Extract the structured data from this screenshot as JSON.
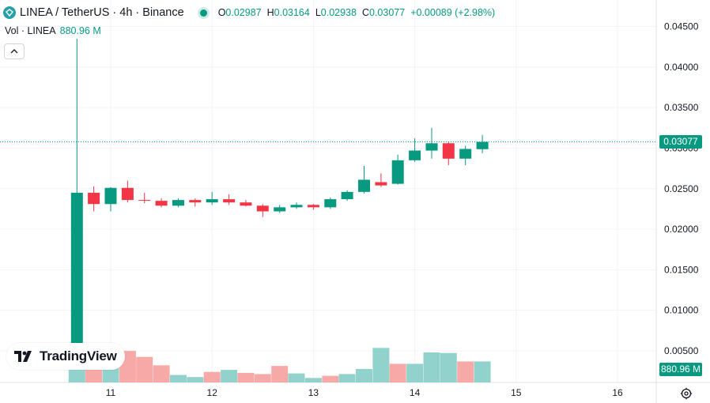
{
  "header": {
    "title": "LINEA / TetherUS · 4h · Binance",
    "ohlc": {
      "o_label": "O",
      "o": "0.02987",
      "h_label": "H",
      "h": "0.03164",
      "l_label": "L",
      "l": "0.02938",
      "c_label": "C",
      "c": "0.03077",
      "change": "+0.00089 (+2.98%)"
    }
  },
  "volume_legend": {
    "label": "Vol · LINEA",
    "value": "880.96 M"
  },
  "price_tag": "0.03077",
  "volume_tag": "880.96 M",
  "logo_text": "TradingView",
  "icons": {
    "symbol": "linea-symbol-icon",
    "status": "market-status-dot",
    "collapse": "chevron-up-icon",
    "logo": "tradingview-logo-icon",
    "settings": "gear-icon"
  },
  "colors": {
    "up": "#089981",
    "down": "#f23645",
    "up_volume": "#92d2cc",
    "down_volume": "#f7a9a7",
    "grid": "#f0f3fa"
  },
  "chart_data": {
    "type": "candlestick",
    "y_axis_labels": [
      "0.04500",
      "0.04000",
      "0.03500",
      "0.03000",
      "0.02500",
      "0.02000",
      "0.01500",
      "0.01000",
      "0.00500"
    ],
    "x_axis_labels": [
      "11",
      "12",
      "13",
      "14",
      "15",
      "16"
    ],
    "ylim": [
      0.0,
      0.047
    ],
    "last_price": 0.03077,
    "candles": [
      {
        "t": 10.667,
        "o": 0.0035,
        "h": 0.0435,
        "l": 0.0035,
        "c": 0.0245
      },
      {
        "t": 10.833,
        "o": 0.0245,
        "h": 0.0253,
        "l": 0.0222,
        "c": 0.0231
      },
      {
        "t": 11.0,
        "o": 0.0231,
        "h": 0.0252,
        "l": 0.0222,
        "c": 0.0251
      },
      {
        "t": 11.167,
        "o": 0.0251,
        "h": 0.026,
        "l": 0.0233,
        "c": 0.0236
      },
      {
        "t": 11.333,
        "o": 0.0236,
        "h": 0.0245,
        "l": 0.0232,
        "c": 0.0235
      },
      {
        "t": 11.5,
        "o": 0.0235,
        "h": 0.0238,
        "l": 0.0227,
        "c": 0.0229
      },
      {
        "t": 11.667,
        "o": 0.0229,
        "h": 0.0238,
        "l": 0.0227,
        "c": 0.0236
      },
      {
        "t": 11.833,
        "o": 0.0236,
        "h": 0.0238,
        "l": 0.0228,
        "c": 0.0233
      },
      {
        "t": 12.0,
        "o": 0.0233,
        "h": 0.0246,
        "l": 0.023,
        "c": 0.0237
      },
      {
        "t": 12.167,
        "o": 0.0237,
        "h": 0.0243,
        "l": 0.023,
        "c": 0.0233
      },
      {
        "t": 12.333,
        "o": 0.0233,
        "h": 0.0236,
        "l": 0.0228,
        "c": 0.0229
      },
      {
        "t": 12.5,
        "o": 0.0229,
        "h": 0.0231,
        "l": 0.0215,
        "c": 0.0222
      },
      {
        "t": 12.667,
        "o": 0.0222,
        "h": 0.023,
        "l": 0.022,
        "c": 0.0227
      },
      {
        "t": 12.833,
        "o": 0.0227,
        "h": 0.0233,
        "l": 0.0225,
        "c": 0.023
      },
      {
        "t": 13.0,
        "o": 0.023,
        "h": 0.0231,
        "l": 0.0224,
        "c": 0.0227
      },
      {
        "t": 13.167,
        "o": 0.0227,
        "h": 0.0239,
        "l": 0.0225,
        "c": 0.0237
      },
      {
        "t": 13.333,
        "o": 0.0237,
        "h": 0.0248,
        "l": 0.0235,
        "c": 0.0246
      },
      {
        "t": 13.5,
        "o": 0.0246,
        "h": 0.0278,
        "l": 0.0244,
        "c": 0.0261
      },
      {
        "t": 13.667,
        "o": 0.0258,
        "h": 0.0269,
        "l": 0.0252,
        "c": 0.0254
      },
      {
        "t": 13.833,
        "o": 0.0256,
        "h": 0.0292,
        "l": 0.0255,
        "c": 0.0285
      },
      {
        "t": 14.0,
        "o": 0.0285,
        "h": 0.0312,
        "l": 0.0283,
        "c": 0.0297
      },
      {
        "t": 14.167,
        "o": 0.0297,
        "h": 0.0325,
        "l": 0.0287,
        "c": 0.0306
      },
      {
        "t": 14.333,
        "o": 0.0306,
        "h": 0.0308,
        "l": 0.0279,
        "c": 0.0287
      },
      {
        "t": 14.5,
        "o": 0.0287,
        "h": 0.0303,
        "l": 0.0279,
        "c": 0.0299
      },
      {
        "t": 14.667,
        "o": 0.02987,
        "h": 0.03164,
        "l": 0.02938,
        "c": 0.03077
      }
    ],
    "volumes": [
      {
        "t": 10.667,
        "v": 1.0,
        "dir": "up"
      },
      {
        "t": 10.833,
        "v": 0.52,
        "dir": "down"
      },
      {
        "t": 11.0,
        "v": 0.62,
        "dir": "up"
      },
      {
        "t": 11.167,
        "v": 1.05,
        "dir": "down"
      },
      {
        "t": 11.333,
        "v": 0.85,
        "dir": "down"
      },
      {
        "t": 11.5,
        "v": 0.57,
        "dir": "down"
      },
      {
        "t": 11.667,
        "v": 0.25,
        "dir": "up"
      },
      {
        "t": 11.833,
        "v": 0.18,
        "dir": "up"
      },
      {
        "t": 12.0,
        "v": 0.35,
        "dir": "down"
      },
      {
        "t": 12.167,
        "v": 0.42,
        "dir": "up"
      },
      {
        "t": 12.333,
        "v": 0.32,
        "dir": "down"
      },
      {
        "t": 12.5,
        "v": 0.28,
        "dir": "down"
      },
      {
        "t": 12.667,
        "v": 0.55,
        "dir": "down"
      },
      {
        "t": 12.833,
        "v": 0.3,
        "dir": "up"
      },
      {
        "t": 13.0,
        "v": 0.15,
        "dir": "up"
      },
      {
        "t": 13.167,
        "v": 0.22,
        "dir": "down"
      },
      {
        "t": 13.333,
        "v": 0.28,
        "dir": "up"
      },
      {
        "t": 13.5,
        "v": 0.45,
        "dir": "up"
      },
      {
        "t": 13.667,
        "v": 1.15,
        "dir": "up"
      },
      {
        "t": 13.833,
        "v": 0.62,
        "dir": "down"
      },
      {
        "t": 14.0,
        "v": 0.62,
        "dir": "up"
      },
      {
        "t": 14.167,
        "v": 1.0,
        "dir": "up"
      },
      {
        "t": 14.333,
        "v": 0.98,
        "dir": "up"
      },
      {
        "t": 14.5,
        "v": 0.7,
        "dir": "down"
      },
      {
        "t": 14.667,
        "v": 0.7,
        "dir": "up"
      }
    ]
  }
}
